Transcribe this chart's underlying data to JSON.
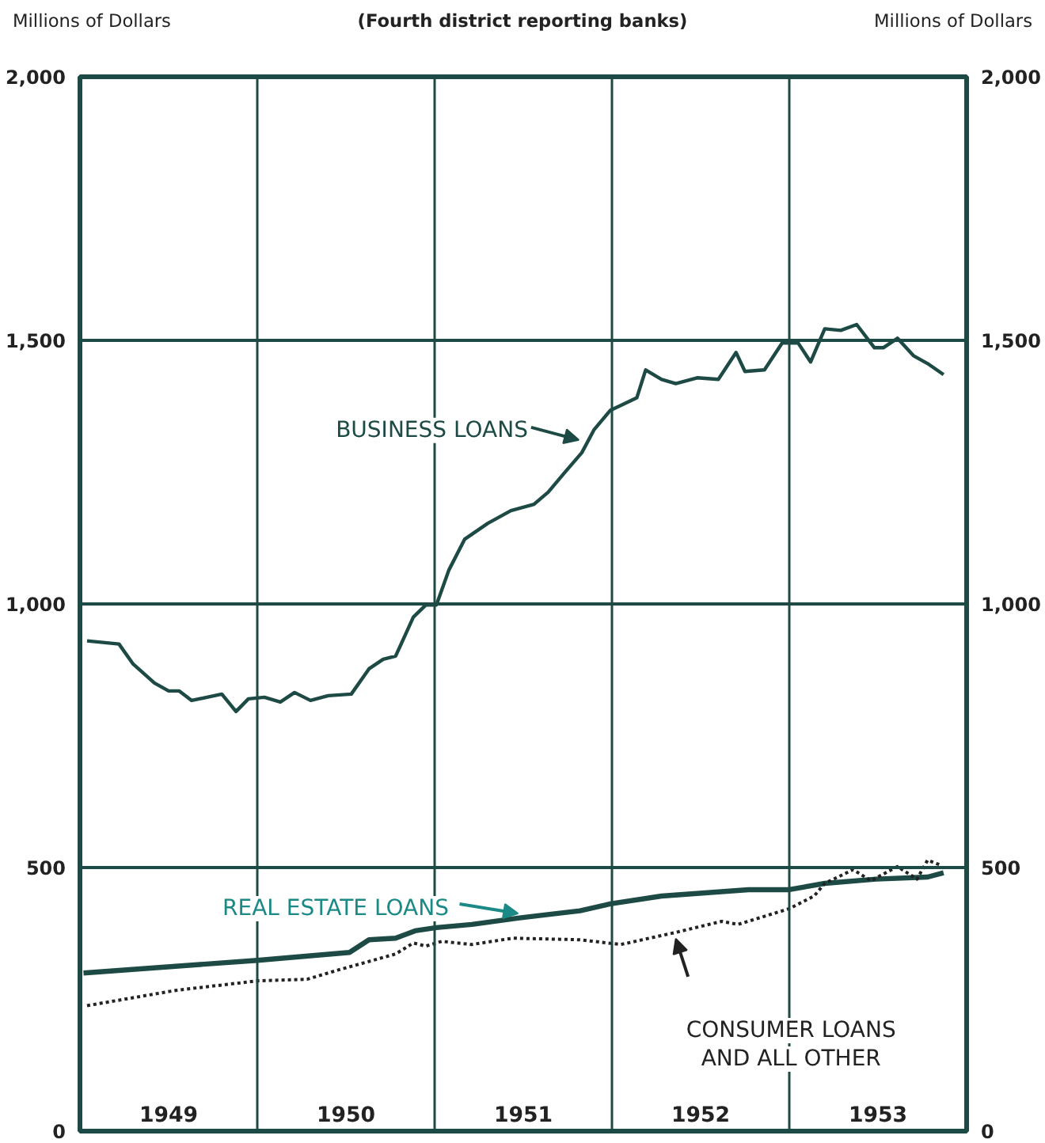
{
  "chart_data": {
    "type": "line",
    "title": "(Fourth district reporting banks)",
    "ylabel": "Millions of Dollars",
    "y2label": "Millions of Dollars",
    "xlim": [
      1949,
      1954
    ],
    "xticks": [
      {
        "value": 1949,
        "label": null
      },
      {
        "value": 1949.5,
        "label": "1949"
      },
      {
        "value": 1950,
        "label": null
      },
      {
        "value": 1950.5,
        "label": "1950"
      },
      {
        "value": 1951,
        "label": null
      },
      {
        "value": 1951.5,
        "label": "1951"
      },
      {
        "value": 1952,
        "label": null
      },
      {
        "value": 1952.5,
        "label": "1952"
      },
      {
        "value": 1953,
        "label": null
      },
      {
        "value": 1953.5,
        "label": "1953"
      },
      {
        "value": 1954,
        "label": null
      }
    ],
    "ylim": [
      0,
      2000
    ],
    "yticks": [
      0,
      500,
      {
        "value": 1000,
        "label": "1,000"
      },
      {
        "value": 1500,
        "label": "1,500"
      },
      {
        "value": 2000,
        "label": "2,000"
      }
    ],
    "y2lim": [
      0,
      2000
    ],
    "y2ticks": [
      0,
      500,
      {
        "value": 1000,
        "label": "1,000"
      },
      {
        "value": 1500,
        "label": "1,500"
      },
      {
        "value": 2000,
        "label": "2,000"
      }
    ],
    "grid": true,
    "series": [
      {
        "name": "BUSINESS LOANS",
        "color": "#1d4a44",
        "line_style": "solid",
        "x": [
          1949.04,
          1949.22,
          1949.3,
          1949.42,
          1949.5,
          1949.56,
          1949.63,
          1949.8,
          1949.88,
          1949.95,
          1950.04,
          1950.13,
          1950.21,
          1950.3,
          1950.4,
          1950.53,
          1950.63,
          1950.71,
          1950.78,
          1950.88,
          1950.95,
          1951.01,
          1951.08,
          1951.17,
          1951.3,
          1951.43,
          1951.56,
          1951.64,
          1951.73,
          1951.83,
          1951.9,
          1951.99,
          1952.14,
          1952.19,
          1952.28,
          1952.36,
          1952.48,
          1952.6,
          1952.7,
          1952.75,
          1952.86,
          1952.96,
          1953.05,
          1953.12,
          1953.2,
          1953.29,
          1953.38,
          1953.48,
          1953.53,
          1953.61,
          1953.7,
          1953.78,
          1953.87
        ],
        "values": [
          930,
          924,
          886,
          850,
          835,
          835,
          817,
          829,
          796,
          820,
          823,
          814,
          832,
          817,
          826,
          829,
          877,
          895,
          901,
          975,
          998,
          998,
          1064,
          1123,
          1153,
          1177,
          1189,
          1212,
          1248,
          1287,
          1331,
          1367,
          1391,
          1444,
          1426,
          1418,
          1429,
          1426,
          1477,
          1441,
          1444,
          1495,
          1495,
          1459,
          1522,
          1519,
          1530,
          1486,
          1486,
          1504,
          1471,
          1456,
          1435
        ]
      },
      {
        "name": "REAL ESTATE LOANS",
        "color": "#1d4a44",
        "line_style": "solid",
        "x": [
          1949.02,
          1950.0,
          1950.52,
          1950.63,
          1950.78,
          1950.89,
          1951.01,
          1951.21,
          1951.47,
          1951.62,
          1951.82,
          1951.99,
          1952.28,
          1952.77,
          1953.0,
          1953.2,
          1953.49,
          1953.78,
          1953.87
        ],
        "values": [
          300,
          324,
          339,
          363,
          366,
          380,
          386,
          392,
          404,
          410,
          418,
          431,
          446,
          458,
          458,
          470,
          478,
          482,
          490
        ]
      },
      {
        "name": "CONSUMER LOANS\nAND ALL OTHER",
        "color": "#222222",
        "line_style": "dotted",
        "x": [
          1949.04,
          1949.54,
          1950.0,
          1950.28,
          1950.46,
          1950.78,
          1950.88,
          1950.95,
          1951.04,
          1951.21,
          1951.44,
          1951.82,
          1952.05,
          1952.36,
          1952.62,
          1952.71,
          1953.0,
          1953.14,
          1953.2,
          1953.36,
          1953.46,
          1953.61,
          1953.72,
          1953.78,
          1953.85
        ],
        "values": [
          238,
          267,
          285,
          288,
          306,
          336,
          357,
          351,
          360,
          354,
          366,
          363,
          354,
          377,
          398,
          392,
          422,
          446,
          470,
          496,
          475,
          502,
          478,
          514,
          505
        ]
      }
    ]
  }
}
